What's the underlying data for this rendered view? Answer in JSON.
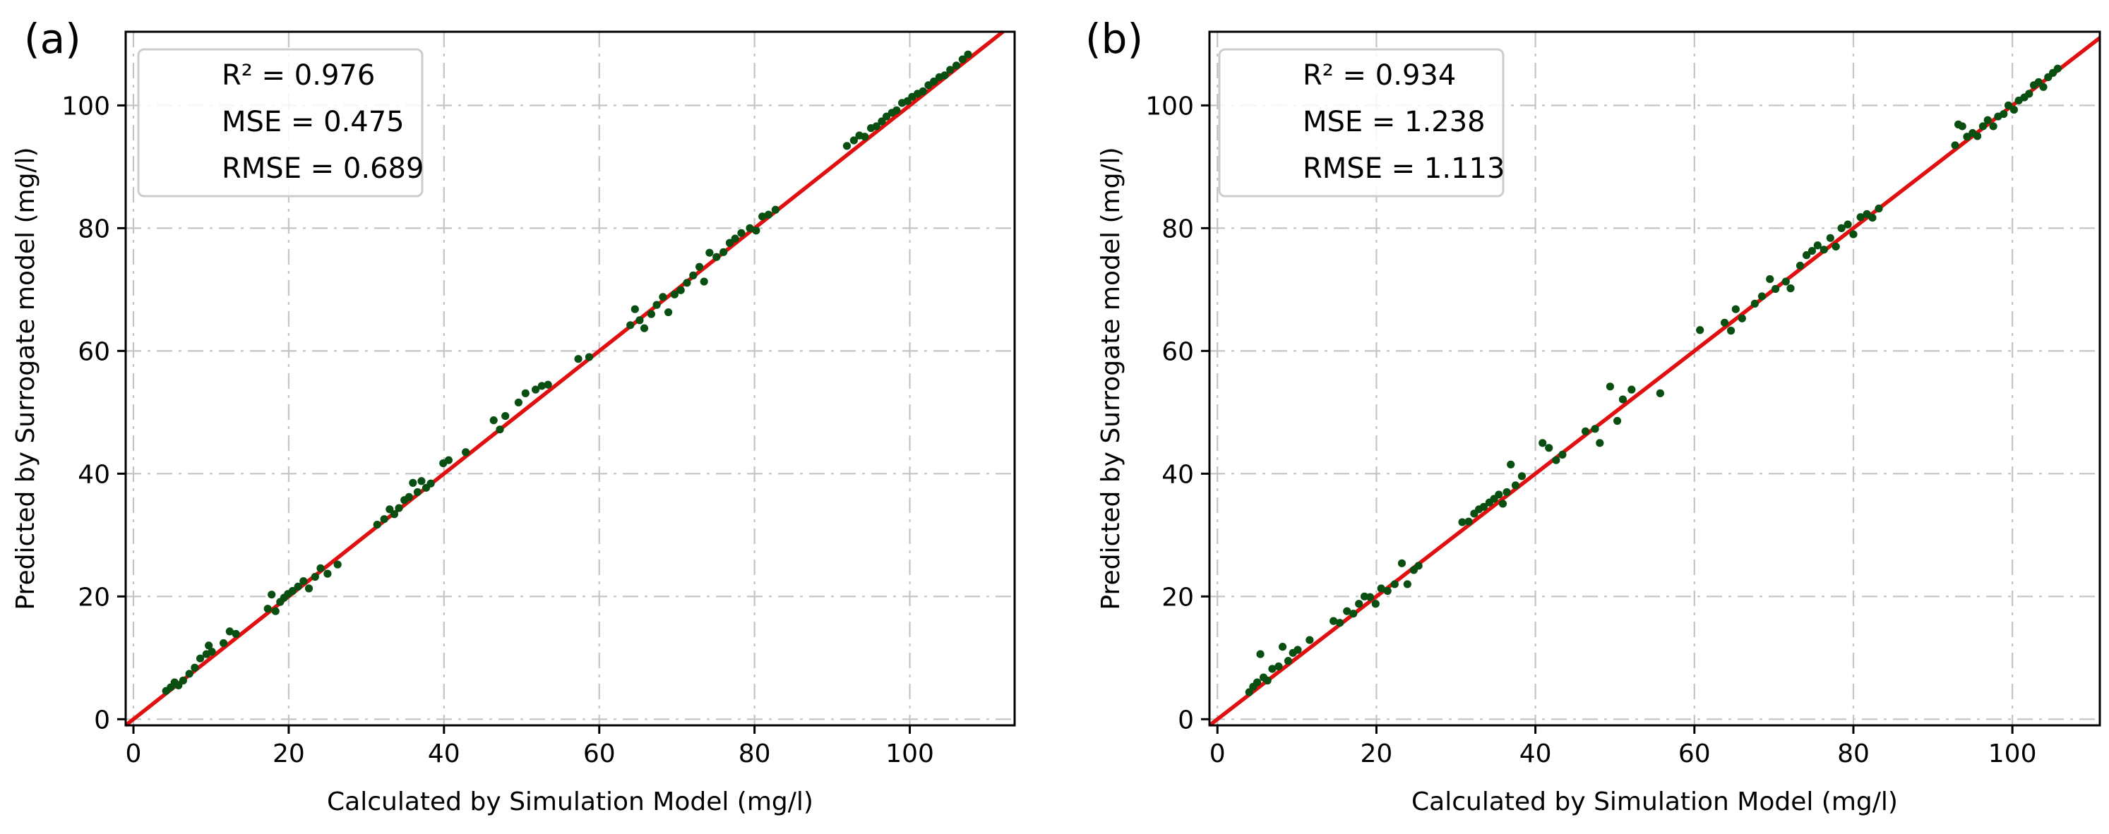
{
  "chart_data": [
    {
      "type": "scatter",
      "panel_label": "(a)",
      "xlabel": "Calculated by Simulation Model (mg/l)",
      "ylabel": "Predicted by Surrogate model (mg/l)",
      "xlim": [
        -1,
        113.5
      ],
      "ylim": [
        -1,
        112
      ],
      "xticks": [
        0,
        20,
        40,
        60,
        80,
        100
      ],
      "yticks": [
        0,
        20,
        40,
        60,
        80,
        100
      ],
      "grid": true,
      "legend_position": "top-left",
      "stats": [
        "R² = 0.976",
        "MSE = 0.475",
        "RMSE = 0.689"
      ],
      "line": {
        "name": "y = x",
        "color": "#e01010"
      },
      "point_color": "#0a4f12",
      "points": [
        [
          4.2,
          4.6
        ],
        [
          4.8,
          5.2
        ],
        [
          5.3,
          6.0
        ],
        [
          5.8,
          5.5
        ],
        [
          6.4,
          6.3
        ],
        [
          7.2,
          7.4
        ],
        [
          7.9,
          8.4
        ],
        [
          8.6,
          9.9
        ],
        [
          9.4,
          10.6
        ],
        [
          10.1,
          11.0
        ],
        [
          9.7,
          12.0
        ],
        [
          11.6,
          12.4
        ],
        [
          12.4,
          14.3
        ],
        [
          13.2,
          13.9
        ],
        [
          17.3,
          18.0
        ],
        [
          17.8,
          20.3
        ],
        [
          18.3,
          17.6
        ],
        [
          18.9,
          19.1
        ],
        [
          19.4,
          19.8
        ],
        [
          19.9,
          20.4
        ],
        [
          20.5,
          20.9
        ],
        [
          21.2,
          21.6
        ],
        [
          21.9,
          22.5
        ],
        [
          22.6,
          21.3
        ],
        [
          23.4,
          23.2
        ],
        [
          24.1,
          24.6
        ],
        [
          25.0,
          23.7
        ],
        [
          26.3,
          25.2
        ],
        [
          31.4,
          31.7
        ],
        [
          32.3,
          32.6
        ],
        [
          33.0,
          34.2
        ],
        [
          33.6,
          33.4
        ],
        [
          34.2,
          34.4
        ],
        [
          34.9,
          35.7
        ],
        [
          35.5,
          36.2
        ],
        [
          36.0,
          38.5
        ],
        [
          36.6,
          37.0
        ],
        [
          37.1,
          38.8
        ],
        [
          37.7,
          37.7
        ],
        [
          38.3,
          38.4
        ],
        [
          39.9,
          41.7
        ],
        [
          40.6,
          42.2
        ],
        [
          42.8,
          43.5
        ],
        [
          46.4,
          48.7
        ],
        [
          47.2,
          47.2
        ],
        [
          47.9,
          49.4
        ],
        [
          49.6,
          51.6
        ],
        [
          50.5,
          53.1
        ],
        [
          51.8,
          53.7
        ],
        [
          52.6,
          54.3
        ],
        [
          53.4,
          54.5
        ],
        [
          57.3,
          58.7
        ],
        [
          58.7,
          59.0
        ],
        [
          64.0,
          64.2
        ],
        [
          64.6,
          66.8
        ],
        [
          65.2,
          65.0
        ],
        [
          65.8,
          63.7
        ],
        [
          66.7,
          66.0
        ],
        [
          67.4,
          67.5
        ],
        [
          68.2,
          68.8
        ],
        [
          68.9,
          66.3
        ],
        [
          69.7,
          69.2
        ],
        [
          70.5,
          69.9
        ],
        [
          71.3,
          71.1
        ],
        [
          72.1,
          72.3
        ],
        [
          72.9,
          73.7
        ],
        [
          73.5,
          71.3
        ],
        [
          74.2,
          76.0
        ],
        [
          75.1,
          75.3
        ],
        [
          76.0,
          76.1
        ],
        [
          76.8,
          77.6
        ],
        [
          77.5,
          78.3
        ],
        [
          78.3,
          79.2
        ],
        [
          79.4,
          80.0
        ],
        [
          80.2,
          79.6
        ],
        [
          81.0,
          81.9
        ],
        [
          81.8,
          82.2
        ],
        [
          82.7,
          83.0
        ],
        [
          91.9,
          93.4
        ],
        [
          92.8,
          94.3
        ],
        [
          93.5,
          95.1
        ],
        [
          94.2,
          94.9
        ],
        [
          95.0,
          96.3
        ],
        [
          95.7,
          96.6
        ],
        [
          96.4,
          97.4
        ],
        [
          97.0,
          98.2
        ],
        [
          97.7,
          98.8
        ],
        [
          98.3,
          99.2
        ],
        [
          99.0,
          100.4
        ],
        [
          99.7,
          100.7
        ],
        [
          100.3,
          101.4
        ],
        [
          101.0,
          101.9
        ],
        [
          101.7,
          102.3
        ],
        [
          102.4,
          103.3
        ],
        [
          103.1,
          103.9
        ],
        [
          103.8,
          104.6
        ],
        [
          104.5,
          104.9
        ],
        [
          105.2,
          105.8
        ],
        [
          106.0,
          106.5
        ],
        [
          106.8,
          107.5
        ],
        [
          107.5,
          108.3
        ]
      ]
    },
    {
      "type": "scatter",
      "panel_label": "(b)",
      "xlabel": "Calculated by Simulation Model (mg/l)",
      "ylabel": "Predicted by Surrogate model (mg/l)",
      "xlim": [
        -1,
        111
      ],
      "ylim": [
        -1,
        112
      ],
      "xticks": [
        0,
        20,
        40,
        60,
        80,
        100
      ],
      "yticks": [
        0,
        20,
        40,
        60,
        80,
        100
      ],
      "grid": true,
      "legend_position": "top-left",
      "stats": [
        "R² = 0.934",
        "MSE = 1.238",
        "RMSE = 1.113"
      ],
      "line": {
        "name": "y = x",
        "color": "#e01010"
      },
      "point_color": "#0a4f12",
      "points": [
        [
          4.0,
          4.4
        ],
        [
          4.5,
          5.3
        ],
        [
          5.0,
          6.0
        ],
        [
          5.4,
          10.6
        ],
        [
          5.8,
          6.8
        ],
        [
          6.3,
          6.3
        ],
        [
          6.9,
          8.2
        ],
        [
          7.7,
          8.6
        ],
        [
          8.2,
          11.8
        ],
        [
          8.9,
          9.5
        ],
        [
          9.5,
          10.8
        ],
        [
          10.1,
          11.3
        ],
        [
          11.6,
          12.9
        ],
        [
          14.6,
          16.0
        ],
        [
          15.4,
          15.7
        ],
        [
          16.3,
          17.6
        ],
        [
          17.1,
          17.2
        ],
        [
          17.8,
          18.8
        ],
        [
          18.5,
          20.0
        ],
        [
          19.2,
          19.9
        ],
        [
          19.9,
          18.8
        ],
        [
          20.6,
          21.3
        ],
        [
          21.4,
          20.9
        ],
        [
          22.3,
          22.0
        ],
        [
          23.2,
          25.4
        ],
        [
          23.9,
          22.0
        ],
        [
          24.7,
          24.3
        ],
        [
          25.3,
          25.0
        ],
        [
          30.8,
          32.1
        ],
        [
          31.6,
          32.2
        ],
        [
          32.3,
          33.5
        ],
        [
          32.9,
          34.2
        ],
        [
          33.5,
          34.6
        ],
        [
          34.2,
          35.3
        ],
        [
          34.8,
          35.9
        ],
        [
          35.4,
          36.6
        ],
        [
          35.9,
          35.1
        ],
        [
          36.4,
          37.0
        ],
        [
          36.9,
          41.5
        ],
        [
          37.5,
          38.1
        ],
        [
          38.3,
          39.6
        ],
        [
          40.9,
          45.0
        ],
        [
          41.7,
          44.2
        ],
        [
          42.6,
          42.2
        ],
        [
          43.4,
          43.1
        ],
        [
          46.3,
          46.9
        ],
        [
          47.5,
          47.3
        ],
        [
          48.1,
          45.0
        ],
        [
          49.4,
          54.2
        ],
        [
          50.3,
          48.6
        ],
        [
          51.0,
          52.1
        ],
        [
          52.1,
          53.7
        ],
        [
          55.7,
          53.1
        ],
        [
          60.7,
          63.4
        ],
        [
          63.8,
          64.6
        ],
        [
          64.6,
          63.3
        ],
        [
          65.2,
          66.8
        ],
        [
          66.0,
          65.3
        ],
        [
          67.6,
          67.7
        ],
        [
          68.5,
          68.9
        ],
        [
          69.5,
          71.7
        ],
        [
          70.2,
          70.1
        ],
        [
          71.5,
          71.3
        ],
        [
          72.1,
          70.2
        ],
        [
          73.3,
          73.9
        ],
        [
          74.1,
          75.6
        ],
        [
          74.8,
          76.3
        ],
        [
          75.5,
          77.2
        ],
        [
          76.3,
          76.5
        ],
        [
          77.1,
          78.4
        ],
        [
          77.8,
          77.0
        ],
        [
          78.5,
          80.0
        ],
        [
          79.3,
          80.6
        ],
        [
          80.0,
          79.0
        ],
        [
          80.9,
          81.8
        ],
        [
          81.7,
          82.3
        ],
        [
          82.4,
          81.7
        ],
        [
          83.2,
          83.2
        ],
        [
          92.8,
          93.5
        ],
        [
          93.2,
          96.9
        ],
        [
          93.7,
          96.6
        ],
        [
          94.3,
          94.9
        ],
        [
          95.0,
          95.5
        ],
        [
          95.6,
          95.0
        ],
        [
          96.3,
          96.6
        ],
        [
          96.9,
          97.6
        ],
        [
          97.6,
          96.6
        ],
        [
          98.2,
          98.2
        ],
        [
          98.9,
          98.6
        ],
        [
          99.5,
          100.0
        ],
        [
          100.2,
          99.3
        ],
        [
          100.8,
          100.8
        ],
        [
          101.5,
          101.3
        ],
        [
          102.1,
          101.9
        ],
        [
          102.7,
          103.3
        ],
        [
          103.3,
          103.8
        ],
        [
          103.9,
          103.0
        ],
        [
          104.5,
          104.6
        ],
        [
          105.1,
          105.3
        ],
        [
          105.7,
          106.0
        ]
      ]
    }
  ]
}
